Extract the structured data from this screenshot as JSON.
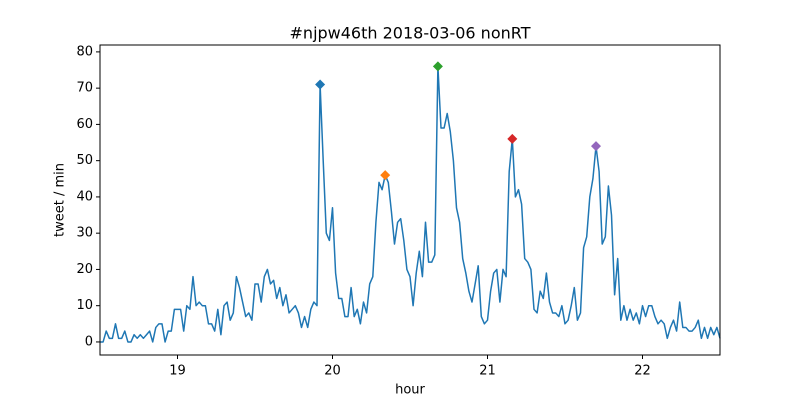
{
  "chart_data": {
    "type": "line",
    "title": "#njpw46th 2018-03-06 nonRT",
    "xlabel": "hour",
    "ylabel": "tweet / min",
    "color": "#1f77b4",
    "x": [
      18.5,
      18.52,
      18.54,
      18.56,
      18.58,
      18.6,
      18.62,
      18.64,
      18.66,
      18.68,
      18.7,
      18.72,
      18.74,
      18.76,
      18.78,
      18.8,
      18.82,
      18.84,
      18.86,
      18.88,
      18.9,
      18.92,
      18.94,
      18.96,
      18.98,
      19.0,
      19.02,
      19.04,
      19.06,
      19.08,
      19.1,
      19.12,
      19.14,
      19.16,
      19.18,
      19.2,
      19.22,
      19.24,
      19.26,
      19.28,
      19.3,
      19.32,
      19.34,
      19.36,
      19.38,
      19.4,
      19.42,
      19.44,
      19.46,
      19.48,
      19.5,
      19.52,
      19.54,
      19.56,
      19.58,
      19.6,
      19.62,
      19.64,
      19.66,
      19.68,
      19.7,
      19.72,
      19.74,
      19.76,
      19.78,
      19.8,
      19.82,
      19.84,
      19.86,
      19.88,
      19.9,
      19.92,
      19.94,
      19.96,
      19.98,
      20.0,
      20.02,
      20.04,
      20.06,
      20.08,
      20.1,
      20.12,
      20.14,
      20.16,
      20.18,
      20.2,
      20.22,
      20.24,
      20.26,
      20.28,
      20.3,
      20.32,
      20.34,
      20.36,
      20.38,
      20.4,
      20.42,
      20.44,
      20.46,
      20.48,
      20.5,
      20.52,
      20.54,
      20.56,
      20.58,
      20.6,
      20.62,
      20.64,
      20.66,
      20.68,
      20.7,
      20.72,
      20.74,
      20.76,
      20.78,
      20.8,
      20.82,
      20.84,
      20.86,
      20.88,
      20.9,
      20.92,
      20.94,
      20.96,
      20.98,
      21.0,
      21.02,
      21.04,
      21.06,
      21.08,
      21.1,
      21.12,
      21.14,
      21.16,
      21.18,
      21.2,
      21.22,
      21.24,
      21.26,
      21.28,
      21.3,
      21.32,
      21.34,
      21.36,
      21.38,
      21.4,
      21.42,
      21.44,
      21.46,
      21.48,
      21.5,
      21.52,
      21.54,
      21.56,
      21.58,
      21.6,
      21.62,
      21.64,
      21.66,
      21.68,
      21.7,
      21.72,
      21.74,
      21.76,
      21.78,
      21.8,
      21.82,
      21.84,
      21.86,
      21.88,
      21.9,
      21.92,
      21.94,
      21.96,
      21.98,
      22.0,
      22.02,
      22.04,
      22.06,
      22.08,
      22.1,
      22.12,
      22.14,
      22.16,
      22.18,
      22.2,
      22.22,
      22.24,
      22.26,
      22.28,
      22.3,
      22.32,
      22.34,
      22.36,
      22.38,
      22.4,
      22.42,
      22.44,
      22.46,
      22.48,
      22.5
    ],
    "values": [
      0,
      0,
      3,
      1,
      1,
      5,
      1,
      1,
      3,
      0,
      0,
      2,
      1,
      2,
      1,
      2,
      3,
      0,
      4,
      5,
      5,
      0,
      3,
      3,
      9,
      9,
      9,
      3,
      10,
      9,
      18,
      10,
      11,
      10,
      10,
      5,
      5,
      3,
      9,
      2,
      10,
      11,
      6,
      8,
      18,
      15,
      11,
      7,
      8,
      6,
      16,
      16,
      11,
      18,
      20,
      16,
      17,
      12,
      15,
      10,
      13,
      8,
      9,
      10,
      8,
      4,
      7,
      4,
      9,
      11,
      10,
      71,
      50,
      30,
      28,
      37,
      19,
      12,
      12,
      7,
      7,
      15,
      7,
      9,
      5,
      11,
      8,
      16,
      18,
      33,
      44,
      42,
      46,
      44,
      36,
      27,
      33,
      34,
      28,
      20,
      18,
      10,
      19,
      25,
      18,
      33,
      22,
      22,
      24,
      76,
      59,
      59,
      63,
      58,
      50,
      37,
      33,
      23,
      19,
      14,
      11,
      16,
      21,
      7,
      5,
      6,
      14,
      19,
      20,
      11,
      20,
      18,
      47,
      56,
      40,
      42,
      38,
      23,
      22,
      20,
      9,
      8,
      14,
      12,
      19,
      11,
      8,
      8,
      7,
      10,
      5,
      6,
      10,
      15,
      6,
      8,
      26,
      29,
      40,
      45,
      54,
      47,
      27,
      29,
      43,
      35,
      13,
      23,
      6,
      10,
      6,
      9,
      6,
      8,
      5,
      10,
      7,
      10,
      10,
      7,
      5,
      6,
      5,
      1,
      4,
      6,
      3,
      11,
      4,
      4,
      3,
      3,
      4,
      6,
      1,
      4,
      1,
      4,
      2,
      4,
      1
    ],
    "peaks": {
      "x": [
        19.92,
        20.34,
        20.68,
        21.16,
        21.7
      ],
      "values": [
        71,
        46,
        76,
        56,
        54
      ],
      "colors": [
        "#1f77b4",
        "#ff7f0e",
        "#2ca02c",
        "#d62728",
        "#9467bd"
      ]
    },
    "xlim": [
      18.5,
      22.5
    ],
    "xticks": [
      19,
      20,
      21,
      22
    ],
    "ylim": [
      -3.6,
      81.9
    ],
    "yticks": [
      0,
      10,
      20,
      30,
      40,
      50,
      60,
      70,
      80
    ],
    "grid": false
  }
}
